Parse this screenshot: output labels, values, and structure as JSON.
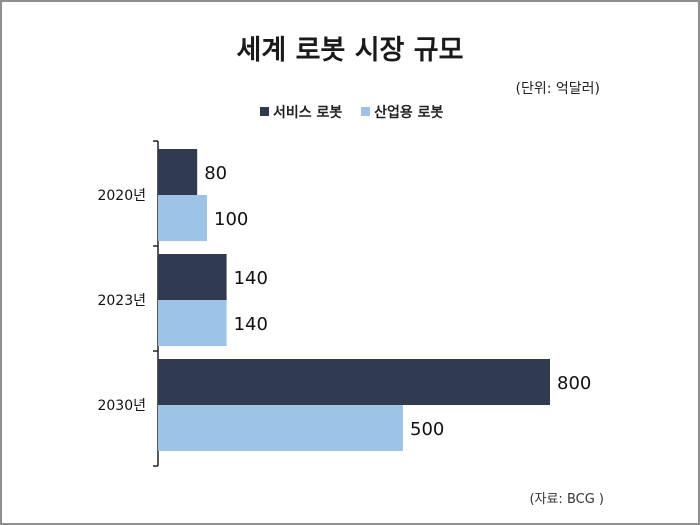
{
  "title": "세계 로봇 시장 규모",
  "unit_note": "(단위: 억달러)",
  "source_note": "(자료: BCG )",
  "colors": {
    "service": "#313b4f",
    "industrial": "#9dc3e6"
  },
  "chart_data": {
    "type": "bar",
    "orientation": "horizontal",
    "categories": [
      "2020년",
      "2023년",
      "2030년"
    ],
    "series": [
      {
        "name": "서비스 로봇",
        "values": [
          80,
          140,
          800
        ]
      },
      {
        "name": "산업용 로봇",
        "values": [
          100,
          140,
          500
        ]
      }
    ],
    "xlim": [
      0,
      800
    ],
    "legend": "top-center",
    "grid": false
  }
}
